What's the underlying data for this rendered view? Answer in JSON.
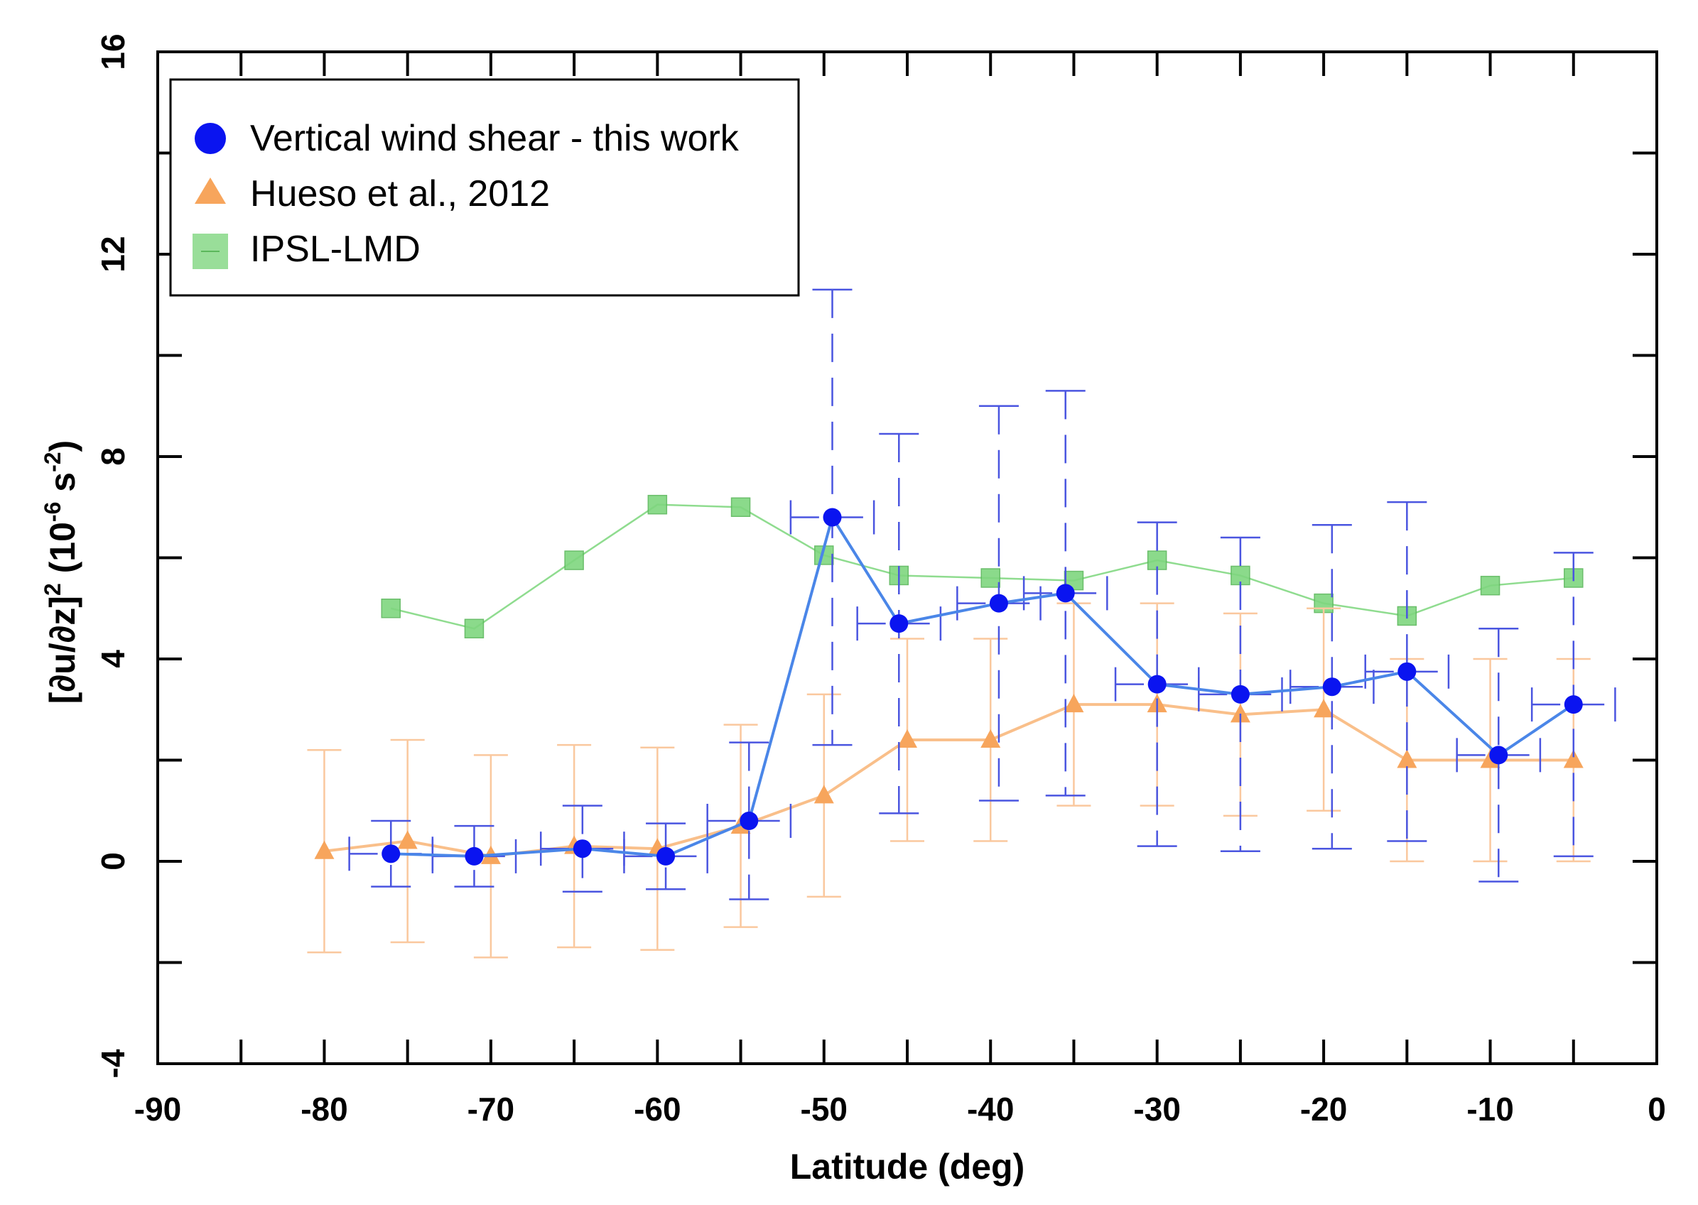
{
  "chart_data": {
    "type": "scatter",
    "title": "",
    "xlabel": "Latitude (deg)",
    "ylabel_parts": {
      "a": "[∂u/∂z]",
      "b": "2",
      "c": " (10",
      "d": "-6",
      "e": " s",
      "f": "-2",
      "g": ")"
    },
    "xlim": [
      -90,
      0
    ],
    "ylim": [
      -4,
      16
    ],
    "xticks": [
      -90,
      -80,
      -70,
      -60,
      -50,
      -40,
      -30,
      -20,
      -10,
      0
    ],
    "yticks": [
      -4,
      0,
      4,
      8,
      12,
      16
    ],
    "x_tick_labels": [
      "-90",
      "-80",
      "-70",
      "-60",
      "-50",
      "-40",
      "-30",
      "-20",
      "-10",
      "0"
    ],
    "y_tick_labels": [
      "-4",
      "0",
      "4",
      "8",
      "12",
      "16"
    ],
    "legend_position": "top-left",
    "series": [
      {
        "name": "Vertical wind shear - this work",
        "marker": "circle",
        "color": "#0a14f0",
        "line_color": "#4a86e8",
        "errorbar_color": "#4a55e0",
        "errorbar_style": "dashed",
        "points": [
          {
            "x": -76,
            "y": 0.15,
            "yerr": 0.65,
            "xerr": 2.5
          },
          {
            "x": -71,
            "y": 0.1,
            "yerr": 0.6,
            "xerr": 2.5
          },
          {
            "x": -64.5,
            "y": 0.25,
            "yerr": 0.85,
            "xerr": 2.5
          },
          {
            "x": -59.5,
            "y": 0.1,
            "yerr": 0.65,
            "xerr": 2.5
          },
          {
            "x": -54.5,
            "y": 0.8,
            "yerr": 1.55,
            "xerr": 2.5
          },
          {
            "x": -49.5,
            "y": 6.8,
            "yerr": 4.5,
            "xerr": 2.5
          },
          {
            "x": -45.5,
            "y": 4.7,
            "yerr": 3.75,
            "xerr": 2.5
          },
          {
            "x": -39.5,
            "y": 5.1,
            "yerr": 3.9,
            "xerr": 2.5
          },
          {
            "x": -35.5,
            "y": 5.3,
            "yerr": 4.0,
            "xerr": 2.5
          },
          {
            "x": -30,
            "y": 3.5,
            "yerr": 3.2,
            "xerr": 2.5
          },
          {
            "x": -25,
            "y": 3.3,
            "yerr": 3.1,
            "xerr": 2.5
          },
          {
            "x": -19.5,
            "y": 3.45,
            "yerr": 3.2,
            "xerr": 2.5
          },
          {
            "x": -15,
            "y": 3.75,
            "yerr": 3.35,
            "xerr": 2.5
          },
          {
            "x": -9.5,
            "y": 2.1,
            "yerr": 2.5,
            "xerr": 2.5
          },
          {
            "x": -5,
            "y": 3.1,
            "yerr": 3.0,
            "xerr": 2.5
          }
        ]
      },
      {
        "name": "Hueso et al., 2012",
        "marker": "triangle",
        "color": "#f7a55c",
        "line_color": "#f9bf8a",
        "errorbar_color": "#fac89e",
        "errorbar_style": "solid",
        "points": [
          {
            "x": -80,
            "y": 0.2,
            "yerr": 2.0
          },
          {
            "x": -75,
            "y": 0.4,
            "yerr": 2.0
          },
          {
            "x": -70,
            "y": 0.1,
            "yerr": 2.0
          },
          {
            "x": -65,
            "y": 0.3,
            "yerr": 2.0
          },
          {
            "x": -60,
            "y": 0.25,
            "yerr": 2.0
          },
          {
            "x": -55,
            "y": 0.7,
            "yerr": 2.0
          },
          {
            "x": -50,
            "y": 1.3,
            "yerr": 2.0
          },
          {
            "x": -45,
            "y": 2.4,
            "yerr": 2.0
          },
          {
            "x": -40,
            "y": 2.4,
            "yerr": 2.0
          },
          {
            "x": -35,
            "y": 3.1,
            "yerr": 2.0
          },
          {
            "x": -30,
            "y": 3.1,
            "yerr": 2.0
          },
          {
            "x": -25,
            "y": 2.9,
            "yerr": 2.0
          },
          {
            "x": -20,
            "y": 3.0,
            "yerr": 2.0
          },
          {
            "x": -15,
            "y": 2.0,
            "yerr": 2.0
          },
          {
            "x": -10,
            "y": 2.0,
            "yerr": 2.0
          },
          {
            "x": -5,
            "y": 2.0,
            "yerr": 2.0
          }
        ]
      },
      {
        "name": "IPSL-LMD",
        "marker": "square",
        "color": "#7fd67f",
        "line_color": "#8fdc8f",
        "points": [
          {
            "x": -76,
            "y": 5.0
          },
          {
            "x": -71,
            "y": 4.6
          },
          {
            "x": -65,
            "y": 5.95
          },
          {
            "x": -60,
            "y": 7.05
          },
          {
            "x": -55,
            "y": 7.0
          },
          {
            "x": -50,
            "y": 6.05
          },
          {
            "x": -45.5,
            "y": 5.65
          },
          {
            "x": -40,
            "y": 5.6
          },
          {
            "x": -35,
            "y": 5.55
          },
          {
            "x": -30,
            "y": 5.95
          },
          {
            "x": -25,
            "y": 5.65
          },
          {
            "x": -20,
            "y": 5.1
          },
          {
            "x": -15,
            "y": 4.85
          },
          {
            "x": -10,
            "y": 5.45
          },
          {
            "x": -5,
            "y": 5.6
          }
        ]
      }
    ]
  }
}
